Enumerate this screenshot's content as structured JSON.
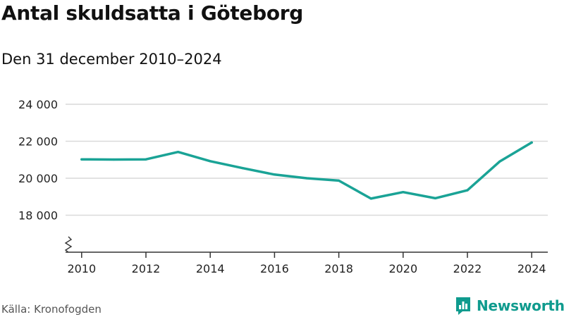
{
  "title": "Antal skuldsatta i Göteborg",
  "subtitle": "Den 31 december 2010–2024",
  "source": "Källa: Kronofogden",
  "brand": {
    "name": "Newsworthy",
    "icon": "newsworthy-logo-icon",
    "color": "#0f9b8e"
  },
  "colors": {
    "line": "#1aa396",
    "grid": "#d9d9d9",
    "axis": "#333333",
    "text": "#222222"
  },
  "chart_data": {
    "type": "line",
    "title": "Antal skuldsatta i Göteborg",
    "subtitle": "Den 31 december 2010–2024",
    "xlabel": "",
    "ylabel": "",
    "x": [
      2010,
      2011,
      2012,
      2013,
      2014,
      2015,
      2016,
      2017,
      2018,
      2019,
      2020,
      2021,
      2022,
      2023,
      2024
    ],
    "series": [
      {
        "name": "Antal skuldsatta",
        "values": [
          21020,
          21010,
          21020,
          21420,
          20920,
          20550,
          20200,
          20000,
          19870,
          18900,
          19250,
          18920,
          19350,
          20900,
          21930
        ]
      }
    ],
    "xlim": [
      2009.5,
      2024.5
    ],
    "ylim": [
      16000,
      24000
    ],
    "x_ticks": [
      2010,
      2012,
      2014,
      2016,
      2018,
      2020,
      2022,
      2024
    ],
    "x_tick_labels": [
      "2010",
      "2012",
      "2014",
      "2016",
      "2018",
      "2020",
      "2022",
      "2024"
    ],
    "y_ticks": [
      18000,
      20000,
      22000,
      24000
    ],
    "y_tick_labels": [
      "18 000",
      "20 000",
      "22 000",
      "24 000"
    ],
    "y_axis_break": true,
    "grid": true,
    "legend": "none"
  }
}
